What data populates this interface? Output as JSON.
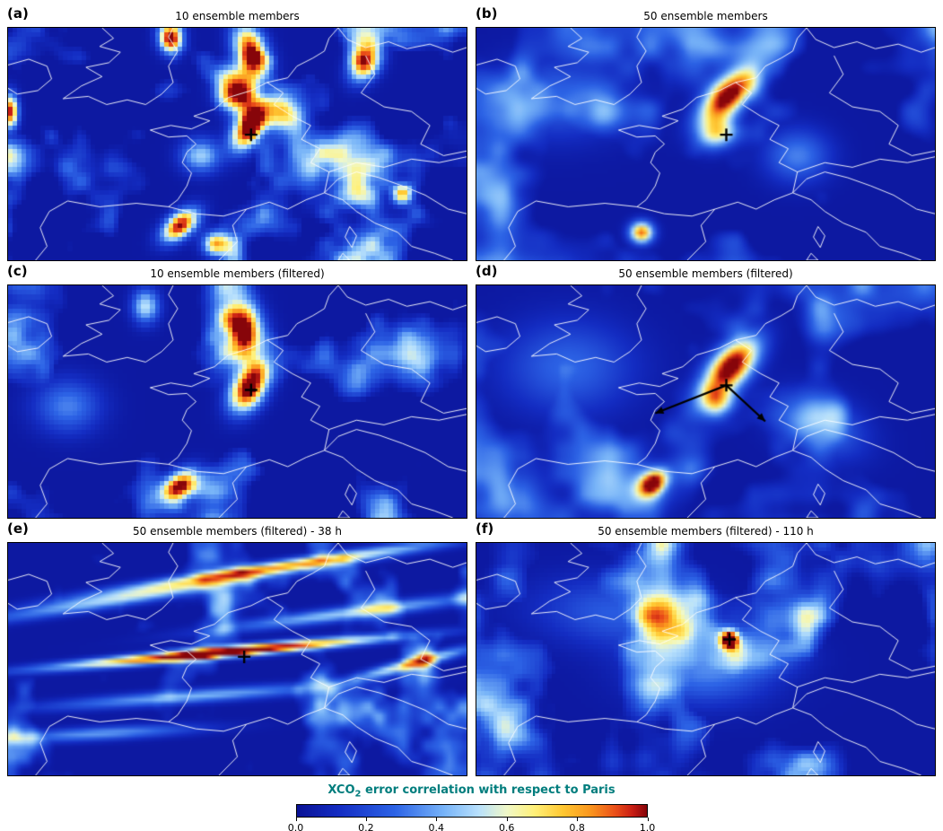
{
  "chart_data": {
    "type": "heatmap",
    "value_range": [
      0,
      1
    ],
    "panels": [
      {
        "id": "a",
        "label": "(a)",
        "title": "10 ensemble members",
        "marker": [
          0.53,
          0.46
        ],
        "seed": 11,
        "grid": [
          100,
          50
        ],
        "pixelated": true,
        "noise": {
          "amp": 0.85,
          "thr": 0.5,
          "fx": 7,
          "fy": 3.5
        },
        "blobs": [
          [
            0.525,
            0.43,
            0.022,
            0.065,
            12,
            1.1
          ],
          [
            0.5,
            0.28,
            0.028,
            0.06,
            -5,
            0.8
          ],
          [
            0.53,
            0.1,
            0.024,
            0.075,
            -8,
            1.0
          ],
          [
            0.355,
            0.04,
            0.018,
            0.045,
            0,
            1.0
          ],
          [
            0.78,
            0.15,
            0.022,
            0.055,
            10,
            0.9
          ],
          [
            0.005,
            0.36,
            0.012,
            0.05,
            0,
            0.95
          ],
          [
            0.375,
            0.85,
            0.022,
            0.05,
            20,
            1.0
          ],
          [
            0.455,
            0.93,
            0.02,
            0.035,
            0,
            0.8
          ],
          [
            0.86,
            0.71,
            0.016,
            0.03,
            0,
            0.7
          ],
          [
            0.6,
            0.36,
            0.03,
            0.05,
            0,
            0.5
          ],
          [
            0.42,
            0.55,
            0.03,
            0.05,
            0,
            0.45
          ]
        ]
      },
      {
        "id": "b",
        "label": "(b)",
        "title": "50 ensemble members",
        "marker": [
          0.545,
          0.46
        ],
        "seed": 23,
        "grid": [
          110,
          55
        ],
        "pixelated": false,
        "noise": {
          "amp": 0.75,
          "thr": 0.46,
          "fx": 5,
          "fy": 2.6
        },
        "blobs": [
          [
            0.55,
            0.29,
            0.03,
            0.085,
            22,
            1.1
          ],
          [
            0.525,
            0.45,
            0.028,
            0.05,
            10,
            0.6
          ],
          [
            0.36,
            0.88,
            0.018,
            0.032,
            0,
            0.85
          ],
          [
            0.7,
            0.55,
            0.05,
            0.08,
            0,
            0.3
          ],
          [
            0.18,
            0.3,
            0.1,
            0.12,
            0,
            0.25
          ]
        ]
      },
      {
        "id": "c",
        "label": "(c)",
        "title": "10 ensemble members (filtered)",
        "marker": [
          0.53,
          0.45
        ],
        "seed": 37,
        "grid": [
          100,
          50
        ],
        "pixelated": true,
        "noise": {
          "amp": 0.8,
          "thr": 0.5,
          "fx": 6.5,
          "fy": 3.2
        },
        "blobs": [
          [
            0.525,
            0.44,
            0.026,
            0.07,
            10,
            1.1
          ],
          [
            0.515,
            0.2,
            0.03,
            0.095,
            -5,
            0.85
          ],
          [
            0.375,
            0.86,
            0.024,
            0.05,
            20,
            0.95
          ],
          [
            0.3,
            0.09,
            0.02,
            0.05,
            0,
            0.5
          ],
          [
            0.13,
            0.52,
            0.05,
            0.08,
            0,
            0.3
          ]
        ]
      },
      {
        "id": "d",
        "label": "(d)",
        "title": "50 ensemble members (filtered)",
        "marker": [
          0.545,
          0.43
        ],
        "seed": 41,
        "grid": [
          110,
          55
        ],
        "pixelated": false,
        "noise": {
          "amp": 0.75,
          "thr": 0.47,
          "fx": 5,
          "fy": 2.6
        },
        "arrows": [
          [
            0.545,
            0.43,
            0.39,
            0.55
          ],
          [
            0.545,
            0.43,
            0.63,
            0.585
          ]
        ],
        "blobs": [
          [
            0.555,
            0.35,
            0.032,
            0.09,
            18,
            1.1
          ],
          [
            0.525,
            0.5,
            0.026,
            0.045,
            0,
            0.55
          ],
          [
            0.385,
            0.85,
            0.02,
            0.04,
            15,
            0.9
          ],
          [
            0.2,
            0.35,
            0.1,
            0.14,
            0,
            0.25
          ],
          [
            0.75,
            0.6,
            0.06,
            0.1,
            -20,
            0.3
          ]
        ]
      },
      {
        "id": "e",
        "label": "(e)",
        "title": "50 ensemble members (filtered) - 38 h",
        "marker": [
          0.515,
          0.49
        ],
        "seed": 53,
        "grid": [
          120,
          60
        ],
        "pixelated": false,
        "noise": {
          "amp": 0.7,
          "thr": 0.52,
          "fx": 9,
          "fy": 4
        },
        "blobs": [
          [
            0.47,
            0.47,
            0.24,
            0.016,
            -10,
            1.15
          ],
          [
            0.6,
            0.1,
            0.25,
            0.018,
            -16,
            0.65
          ],
          [
            0.3,
            0.22,
            0.25,
            0.022,
            -18,
            0.5
          ],
          [
            0.75,
            0.3,
            0.2,
            0.02,
            -14,
            0.45
          ],
          [
            0.4,
            0.66,
            0.22,
            0.02,
            -8,
            0.4
          ],
          [
            0.88,
            0.52,
            0.1,
            0.016,
            -28,
            0.6
          ],
          [
            0.2,
            0.82,
            0.15,
            0.02,
            -6,
            0.35
          ]
        ]
      },
      {
        "id": "f",
        "label": "(f)",
        "title": "50 ensemble members (filtered) - 110 h",
        "marker": [
          0.552,
          0.415
        ],
        "seed": 67,
        "grid": [
          110,
          55
        ],
        "pixelated": true,
        "noise": {
          "amp": 0.8,
          "thr": 0.49,
          "fx": 6,
          "fy": 3
        },
        "blobs": [
          [
            0.552,
            0.415,
            0.013,
            0.027,
            0,
            1.05
          ],
          [
            0.5,
            0.55,
            0.1,
            0.1,
            0,
            0.3
          ],
          [
            0.62,
            0.48,
            0.06,
            0.05,
            0,
            0.28
          ],
          [
            0.3,
            0.3,
            0.12,
            0.1,
            20,
            0.22
          ]
        ]
      }
    ],
    "colorbar": {
      "title_prefix": "XCO",
      "title_sub": "2",
      "title_suffix": " error correlation with respect to Paris",
      "title_color": "#007d7d",
      "min": 0,
      "max": 1,
      "ticks": [
        "0.0",
        "0.2",
        "0.4",
        "0.6",
        "0.8",
        "1.0"
      ],
      "gradient_stops": [
        {
          "t": 0.0,
          "c": [
            10,
            18,
            150
          ]
        },
        {
          "t": 0.12,
          "c": [
            20,
            45,
            195
          ]
        },
        {
          "t": 0.28,
          "c": [
            45,
            100,
            230
          ]
        },
        {
          "t": 0.42,
          "c": [
            120,
            180,
            248
          ]
        },
        {
          "t": 0.52,
          "c": [
            185,
            225,
            252
          ]
        },
        {
          "t": 0.6,
          "c": [
            240,
            248,
            200
          ]
        },
        {
          "t": 0.68,
          "c": [
            255,
            240,
            120
          ]
        },
        {
          "t": 0.76,
          "c": [
            255,
            200,
            50
          ]
        },
        {
          "t": 0.84,
          "c": [
            250,
            150,
            30
          ]
        },
        {
          "t": 0.91,
          "c": [
            235,
            80,
            25
          ]
        },
        {
          "t": 0.96,
          "c": [
            200,
            30,
            20
          ]
        },
        {
          "t": 1.0,
          "c": [
            135,
            5,
            10
          ]
        }
      ]
    },
    "style": {
      "marker_color": "#000000",
      "arrow_color": "#000000",
      "coastline_color": "#ffffff",
      "background": "#ffffff"
    },
    "map_outlines": [
      [
        [
          0.0,
          0.16
        ],
        [
          0.045,
          0.135
        ],
        [
          0.085,
          0.165
        ],
        [
          0.095,
          0.22
        ],
        [
          0.065,
          0.27
        ],
        [
          0.02,
          0.285
        ],
        [
          0.0,
          0.26
        ]
      ],
      [
        [
          0.205,
          0.0
        ],
        [
          0.23,
          0.045
        ],
        [
          0.2,
          0.08
        ],
        [
          0.245,
          0.105
        ],
        [
          0.22,
          0.15
        ],
        [
          0.17,
          0.17
        ],
        [
          0.205,
          0.21
        ],
        [
          0.16,
          0.25
        ],
        [
          0.12,
          0.305
        ],
        [
          0.175,
          0.295
        ],
        [
          0.215,
          0.33
        ],
        [
          0.26,
          0.31
        ],
        [
          0.3,
          0.33
        ],
        [
          0.335,
          0.285
        ],
        [
          0.36,
          0.235
        ],
        [
          0.35,
          0.165
        ],
        [
          0.37,
          0.1
        ],
        [
          0.35,
          0.04
        ],
        [
          0.36,
          0.0
        ]
      ],
      [
        [
          0.405,
          0.38
        ],
        [
          0.44,
          0.4
        ],
        [
          0.4,
          0.435
        ],
        [
          0.355,
          0.42
        ],
        [
          0.31,
          0.44
        ],
        [
          0.35,
          0.47
        ],
        [
          0.39,
          0.465
        ],
        [
          0.41,
          0.5
        ],
        [
          0.39,
          0.535
        ],
        [
          0.38,
          0.58
        ],
        [
          0.4,
          0.625
        ],
        [
          0.39,
          0.68
        ],
        [
          0.37,
          0.74
        ],
        [
          0.35,
          0.77
        ]
      ],
      [
        [
          0.405,
          0.38
        ],
        [
          0.45,
          0.35
        ],
        [
          0.48,
          0.3
        ],
        [
          0.53,
          0.27
        ],
        [
          0.565,
          0.235
        ],
        [
          0.61,
          0.215
        ],
        [
          0.63,
          0.165
        ],
        [
          0.665,
          0.13
        ],
        [
          0.69,
          0.1
        ],
        [
          0.7,
          0.045
        ],
        [
          0.72,
          0.0
        ]
      ],
      [
        [
          0.35,
          0.77
        ],
        [
          0.41,
          0.8
        ],
        [
          0.47,
          0.81
        ],
        [
          0.52,
          0.78
        ]
      ],
      [
        [
          0.35,
          0.77
        ],
        [
          0.28,
          0.755
        ],
        [
          0.2,
          0.77
        ],
        [
          0.13,
          0.745
        ],
        [
          0.09,
          0.79
        ],
        [
          0.07,
          0.86
        ],
        [
          0.085,
          0.94
        ],
        [
          0.06,
          1.0
        ]
      ],
      [
        [
          0.52,
          0.78
        ],
        [
          0.49,
          0.85
        ],
        [
          0.5,
          0.92
        ],
        [
          0.46,
          1.0
        ]
      ],
      [
        [
          0.52,
          0.78
        ],
        [
          0.57,
          0.75
        ],
        [
          0.61,
          0.78
        ],
        [
          0.65,
          0.74
        ],
        [
          0.69,
          0.71
        ],
        [
          0.73,
          0.74
        ],
        [
          0.76,
          0.79
        ],
        [
          0.8,
          0.84
        ],
        [
          0.85,
          0.88
        ],
        [
          0.88,
          0.94
        ],
        [
          0.93,
          0.97
        ],
        [
          0.97,
          1.0
        ]
      ],
      [
        [
          0.69,
          0.71
        ],
        [
          0.72,
          0.65
        ],
        [
          0.76,
          0.62
        ],
        [
          0.81,
          0.645
        ],
        [
          0.86,
          0.68
        ],
        [
          0.91,
          0.72
        ],
        [
          0.96,
          0.78
        ],
        [
          1.0,
          0.8
        ]
      ],
      [
        [
          0.72,
          0.0
        ],
        [
          0.74,
          0.05
        ],
        [
          0.78,
          0.085
        ],
        [
          0.83,
          0.06
        ],
        [
          0.87,
          0.09
        ],
        [
          0.92,
          0.07
        ],
        [
          0.97,
          0.105
        ],
        [
          1.0,
          0.085
        ]
      ],
      [
        [
          0.565,
          0.235
        ],
        [
          0.6,
          0.28
        ],
        [
          0.58,
          0.33
        ],
        [
          0.62,
          0.38
        ],
        [
          0.66,
          0.42
        ],
        [
          0.64,
          0.48
        ],
        [
          0.68,
          0.52
        ],
        [
          0.66,
          0.58
        ],
        [
          0.7,
          0.62
        ],
        [
          0.69,
          0.71
        ]
      ],
      [
        [
          0.78,
          0.12
        ],
        [
          0.8,
          0.2
        ],
        [
          0.77,
          0.28
        ],
        [
          0.82,
          0.34
        ],
        [
          0.88,
          0.36
        ],
        [
          0.92,
          0.42
        ],
        [
          0.9,
          0.5
        ],
        [
          0.95,
          0.55
        ],
        [
          1.0,
          0.53
        ]
      ],
      [
        [
          0.7,
          0.62
        ],
        [
          0.76,
          0.58
        ],
        [
          0.82,
          0.6
        ],
        [
          0.88,
          0.565
        ],
        [
          0.94,
          0.58
        ],
        [
          1.0,
          0.555
        ]
      ],
      [
        [
          0.745,
          0.855
        ],
        [
          0.76,
          0.895
        ],
        [
          0.75,
          0.945
        ],
        [
          0.735,
          0.9
        ],
        [
          0.745,
          0.855
        ]
      ],
      [
        [
          0.73,
          0.97
        ],
        [
          0.745,
          1.0
        ],
        [
          0.72,
          1.0
        ],
        [
          0.73,
          0.97
        ]
      ]
    ]
  }
}
